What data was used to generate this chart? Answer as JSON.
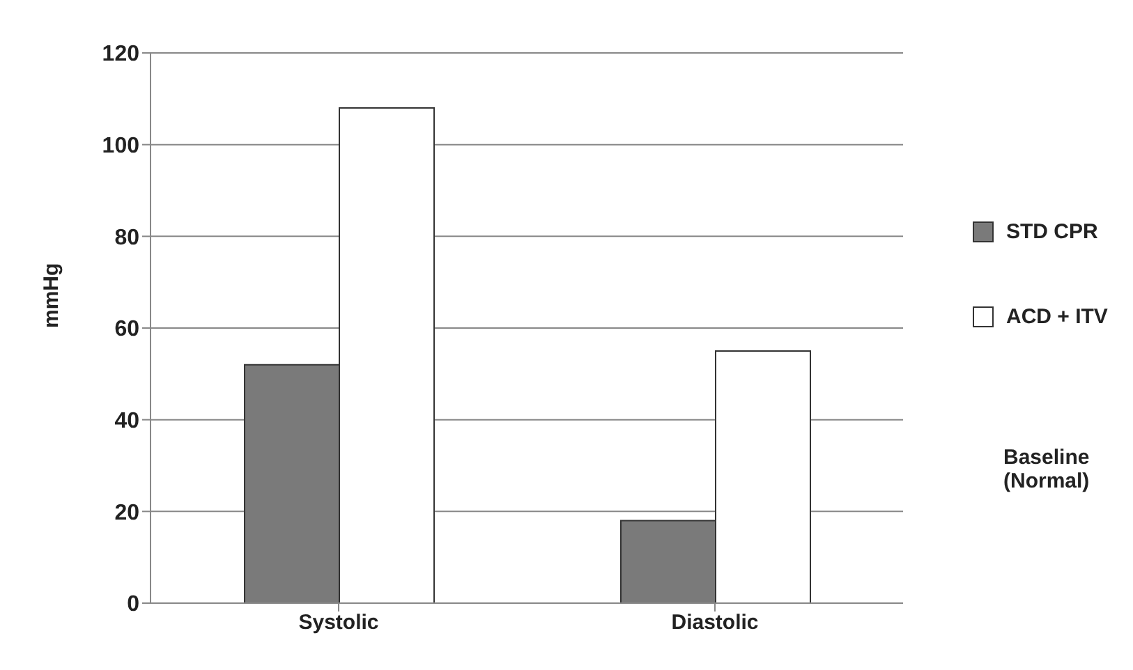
{
  "chart_data": {
    "type": "bar",
    "ylabel": "mmHg",
    "categories": [
      "Systolic",
      "Diastolic"
    ],
    "series": [
      {
        "name": "STD CPR",
        "color": "#7a7a7a",
        "values": [
          52,
          18
        ]
      },
      {
        "name": "ACD + ITV",
        "color": "#ffffff",
        "values": [
          108,
          55
        ]
      }
    ],
    "ylim": [
      0,
      120
    ],
    "yticks": [
      0,
      20,
      40,
      60,
      80,
      100,
      120
    ],
    "grid": "y",
    "legend": "right",
    "annotations": [
      "Baseline (Normal)"
    ]
  }
}
